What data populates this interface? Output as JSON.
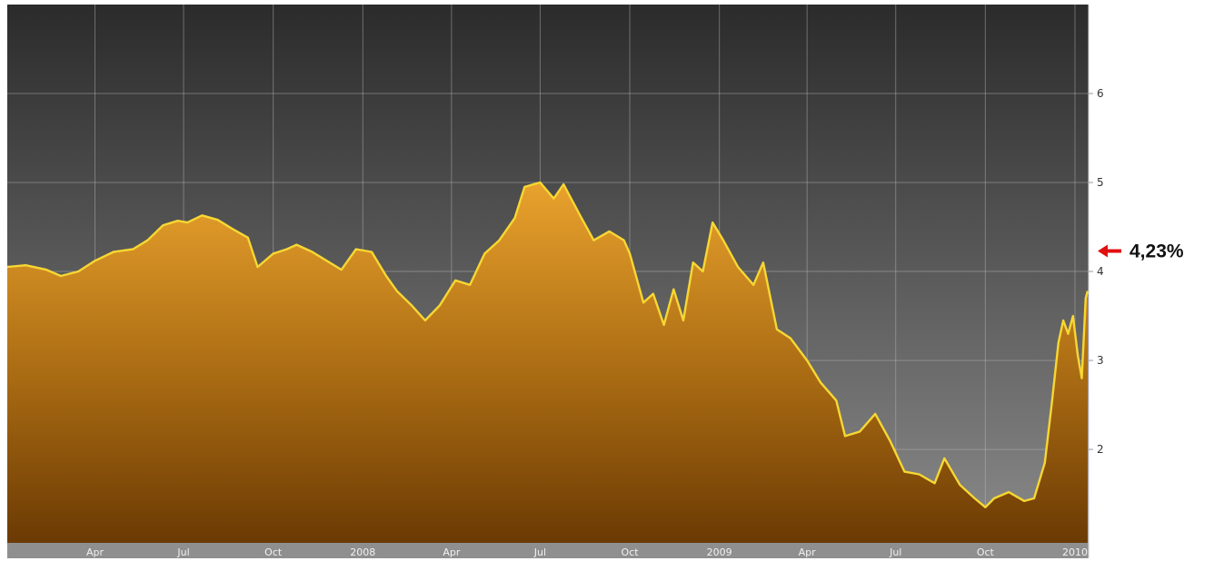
{
  "chart_data": {
    "type": "area",
    "title": "",
    "xlabel": "",
    "ylabel": "",
    "x_ticks": [
      "Apr",
      "Jul",
      "Oct",
      "2008",
      "Apr",
      "Jul",
      "Oct",
      "2009",
      "Apr",
      "Jul",
      "Oct",
      "2010"
    ],
    "y_ticks": [
      2,
      3,
      4,
      5,
      6
    ],
    "ylim": [
      0.95,
      7.0
    ],
    "xlim": [
      "2007-01-01",
      "2010-01-15"
    ],
    "grid": true,
    "callout": {
      "label": "4,23%",
      "value": 4.23
    },
    "series": [
      {
        "points": [
          [
            "2007-01-01",
            4.05
          ],
          [
            "2007-01-20",
            4.07
          ],
          [
            "2007-02-10",
            4.02
          ],
          [
            "2007-02-25",
            3.95
          ],
          [
            "2007-03-15",
            4.0
          ],
          [
            "2007-04-01",
            4.12
          ],
          [
            "2007-04-20",
            4.22
          ],
          [
            "2007-05-10",
            4.25
          ],
          [
            "2007-05-25",
            4.35
          ],
          [
            "2007-06-10",
            4.52
          ],
          [
            "2007-06-25",
            4.57
          ],
          [
            "2007-07-05",
            4.55
          ],
          [
            "2007-07-20",
            4.63
          ],
          [
            "2007-08-05",
            4.58
          ],
          [
            "2007-08-20",
            4.48
          ],
          [
            "2007-09-05",
            4.38
          ],
          [
            "2007-09-15",
            4.05
          ],
          [
            "2007-10-01",
            4.2
          ],
          [
            "2007-10-15",
            4.25
          ],
          [
            "2007-10-25",
            4.3
          ],
          [
            "2007-11-10",
            4.22
          ],
          [
            "2007-11-25",
            4.12
          ],
          [
            "2007-12-10",
            4.02
          ],
          [
            "2007-12-25",
            4.25
          ],
          [
            "2008-01-10",
            4.22
          ],
          [
            "2008-01-25",
            3.95
          ],
          [
            "2008-02-05",
            3.78
          ],
          [
            "2008-02-20",
            3.62
          ],
          [
            "2008-03-05",
            3.45
          ],
          [
            "2008-03-20",
            3.62
          ],
          [
            "2008-04-05",
            3.9
          ],
          [
            "2008-04-20",
            3.85
          ],
          [
            "2008-05-05",
            4.2
          ],
          [
            "2008-05-20",
            4.35
          ],
          [
            "2008-06-05",
            4.6
          ],
          [
            "2008-06-15",
            4.95
          ],
          [
            "2008-07-01",
            5.0
          ],
          [
            "2008-07-15",
            4.82
          ],
          [
            "2008-07-25",
            4.98
          ],
          [
            "2008-08-10",
            4.65
          ],
          [
            "2008-08-25",
            4.35
          ],
          [
            "2008-09-10",
            4.45
          ],
          [
            "2008-09-25",
            4.35
          ],
          [
            "2008-10-01",
            4.2
          ],
          [
            "2008-10-15",
            3.65
          ],
          [
            "2008-10-25",
            3.75
          ],
          [
            "2008-11-05",
            3.4
          ],
          [
            "2008-11-15",
            3.8
          ],
          [
            "2008-11-25",
            3.45
          ],
          [
            "2008-12-05",
            4.1
          ],
          [
            "2008-12-15",
            4.0
          ],
          [
            "2008-12-25",
            4.55
          ],
          [
            "2009-01-05",
            4.35
          ],
          [
            "2009-01-20",
            4.05
          ],
          [
            "2009-02-05",
            3.85
          ],
          [
            "2009-02-15",
            4.1
          ],
          [
            "2009-03-01",
            3.35
          ],
          [
            "2009-03-15",
            3.25
          ],
          [
            "2009-04-01",
            3.0
          ],
          [
            "2009-04-15",
            2.75
          ],
          [
            "2009-05-01",
            2.55
          ],
          [
            "2009-05-10",
            2.15
          ],
          [
            "2009-05-25",
            2.2
          ],
          [
            "2009-06-10",
            2.4
          ],
          [
            "2009-06-25",
            2.1
          ],
          [
            "2009-07-10",
            1.75
          ],
          [
            "2009-07-25",
            1.72
          ],
          [
            "2009-08-10",
            1.62
          ],
          [
            "2009-08-20",
            1.9
          ],
          [
            "2009-09-05",
            1.6
          ],
          [
            "2009-09-20",
            1.45
          ],
          [
            "2009-10-01",
            1.35
          ],
          [
            "2009-10-10",
            1.45
          ],
          [
            "2009-10-25",
            1.52
          ],
          [
            "2009-11-10",
            1.42
          ],
          [
            "2009-11-20",
            1.45
          ],
          [
            "2009-12-01",
            1.85
          ],
          [
            "2009-12-08",
            2.5
          ],
          [
            "2009-12-15",
            3.2
          ],
          [
            "2009-12-20",
            3.45
          ],
          [
            "2009-12-25",
            3.3
          ],
          [
            "2009-12-30",
            3.5
          ],
          [
            "2010-01-04",
            3.05
          ],
          [
            "2010-01-08",
            2.8
          ],
          [
            "2010-01-12",
            3.7
          ],
          [
            "2010-01-14",
            3.78
          ]
        ]
      }
    ]
  }
}
